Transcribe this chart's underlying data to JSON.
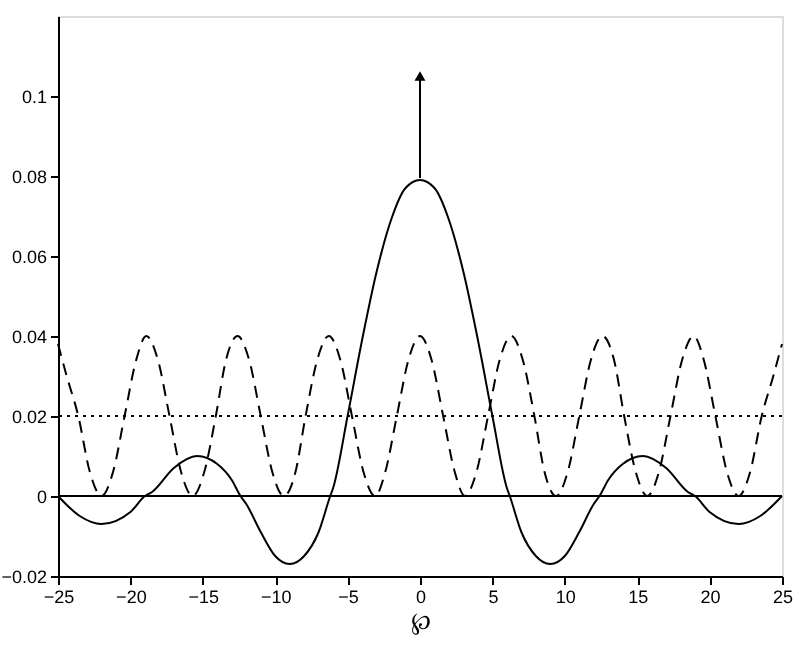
{
  "chart_data": {
    "type": "line",
    "xlabel": "℘",
    "xlim": [
      -25,
      25
    ],
    "xticks": [
      -25,
      -20,
      -15,
      -10,
      -5,
      0,
      5,
      10,
      15,
      20,
      25
    ],
    "ylim": [
      -0.02,
      0.12
    ],
    "yticks": [
      -0.02,
      0,
      0.02,
      0.04,
      0.06,
      0.08,
      0.1
    ],
    "grid": false,
    "series": [
      {
        "color": "#000000",
        "line_style": "solid",
        "x": [
          -25,
          -23.5,
          -22,
          -20,
          -19,
          -18.5,
          -17,
          -15.4,
          -14,
          -13,
          -12.4,
          -12,
          -11,
          -10,
          -9,
          -8,
          -7,
          -6.2,
          -6,
          -5,
          -4,
          -3,
          -2,
          -1,
          0,
          1,
          2,
          3,
          4,
          5,
          6,
          6.2,
          7,
          8,
          9,
          10,
          11,
          12,
          12.4,
          13,
          14,
          15.4,
          17,
          18.5,
          19,
          20,
          22,
          23.5,
          25
        ],
        "values": [
          0,
          -0.005,
          -0.007,
          -0.004,
          0,
          0.001,
          0.007,
          0.01,
          0.008,
          0.004,
          0,
          -0.002,
          -0.009,
          -0.015,
          -0.017,
          -0.015,
          -0.009,
          0,
          0.002,
          0.02,
          0.039,
          0.056,
          0.069,
          0.077,
          0.079,
          0.077,
          0.069,
          0.056,
          0.039,
          0.02,
          0.002,
          0,
          -0.009,
          -0.015,
          -0.017,
          -0.015,
          -0.009,
          -0.002,
          0,
          0.004,
          0.008,
          0.01,
          0.007,
          0.001,
          0,
          -0.004,
          -0.007,
          -0.005,
          0
        ]
      },
      {
        "color": "#000000",
        "line_style": "dashed",
        "x": [
          -25,
          -24.4,
          -23.6,
          -22.8,
          -22,
          -21.2,
          -20.4,
          -19.6,
          -18.9,
          -18.1,
          -17.3,
          -16.5,
          -15.7,
          -14.9,
          -14.1,
          -13.4,
          -12.6,
          -11.8,
          -11,
          -10.2,
          -9.4,
          -8.6,
          -7.9,
          -7.1,
          -6.3,
          -5.5,
          -4.7,
          -3.9,
          -3.1,
          -2.4,
          -1.6,
          -0.8,
          0,
          0.8,
          1.6,
          2.4,
          3.1,
          3.9,
          4.7,
          5.5,
          6.3,
          7.1,
          7.9,
          8.6,
          9.4,
          10.2,
          11,
          11.8,
          12.6,
          13.4,
          14.1,
          14.9,
          15.7,
          16.5,
          17.3,
          18.1,
          18.9,
          19.6,
          20.4,
          21.2,
          22,
          22.8,
          23.6,
          24.4,
          25
        ],
        "values": [
          0.038,
          0.03,
          0.02,
          0.006,
          0,
          0.006,
          0.02,
          0.034,
          0.04,
          0.034,
          0.02,
          0.006,
          0,
          0.006,
          0.02,
          0.034,
          0.04,
          0.034,
          0.02,
          0.006,
          0,
          0.006,
          0.02,
          0.034,
          0.04,
          0.034,
          0.02,
          0.006,
          0,
          0.006,
          0.02,
          0.034,
          0.04,
          0.034,
          0.02,
          0.006,
          0,
          0.006,
          0.02,
          0.034,
          0.04,
          0.034,
          0.02,
          0.006,
          0,
          0.006,
          0.02,
          0.034,
          0.04,
          0.034,
          0.02,
          0.006,
          0,
          0.006,
          0.02,
          0.034,
          0.04,
          0.034,
          0.02,
          0.006,
          0,
          0.006,
          0.02,
          0.03,
          0.038
        ]
      },
      {
        "color": "#000000",
        "line_style": "solid",
        "marker": "triangle",
        "x": [
          0,
          0
        ],
        "values": [
          0.0795,
          0.105
        ]
      }
    ],
    "ref_lines": [
      {
        "axis": "y",
        "value": 0.02,
        "color": "#000000",
        "line_style": "dotted"
      },
      {
        "axis": "y",
        "value": 0,
        "color": "#000000",
        "line_style": "solid"
      }
    ],
    "tick_labels": "xy"
  }
}
